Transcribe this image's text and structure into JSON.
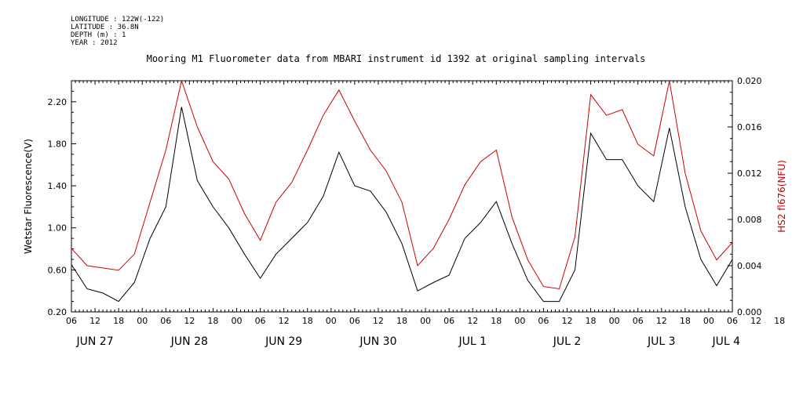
{
  "meta": {
    "longitude": "LONGITUDE : 122W(-122)",
    "latitude": "LATITUDE : 36.8N",
    "depth": "DEPTH (m) : 1",
    "year": "YEAR : 2012"
  },
  "chart_data": {
    "type": "line",
    "title": "Mooring M1 Fluorometer data from MBARI instrument id 1392 at original sampling intervals",
    "ylabel": "Wetstar Fluorescence(V)",
    "y2label": "HS2 fl676(NFU)",
    "ylim": [
      0.2,
      2.4
    ],
    "y2lim": [
      0.0,
      0.02
    ],
    "yticks": [
      "0.20",
      "0.60",
      "1.00",
      "1.40",
      "1.80",
      "2.20"
    ],
    "y2ticks": [
      "0.000",
      "0.004",
      "0.008",
      "0.012",
      "0.016",
      "0.020"
    ],
    "xlim": [
      "2012-06-27T06:00",
      "2012-07-04T06:00"
    ],
    "x_hour_ticks": [
      "06",
      "12",
      "18",
      "00",
      "06",
      "12",
      "18",
      "00",
      "06",
      "12",
      "18",
      "00",
      "06",
      "12",
      "18",
      "00",
      "06",
      "12",
      "18",
      "00",
      "06",
      "12",
      "18",
      "00",
      "06",
      "12",
      "18",
      "00",
      "06",
      "12",
      "18",
      "00",
      "06"
    ],
    "x_day_labels": [
      "JUN 27",
      "JUN 28",
      "JUN 29",
      "JUN 30",
      "JUL 1",
      "JUL 2",
      "JUL 3",
      "JUL 4"
    ],
    "series": [
      {
        "color": "#000000",
        "axis": "left",
        "x": [
          0,
          4,
          8,
          12,
          16,
          20,
          24,
          28,
          32,
          36,
          40,
          44,
          48,
          52,
          56,
          60,
          64,
          68,
          72,
          76,
          80,
          84,
          88,
          92,
          96,
          100,
          104,
          108,
          112,
          116,
          120,
          124,
          128,
          132,
          136,
          140,
          144,
          148,
          152,
          156,
          160,
          164,
          168
        ],
        "y": [
          0.65,
          0.42,
          0.38,
          0.3,
          0.48,
          0.9,
          1.2,
          2.15,
          1.45,
          1.2,
          1.0,
          0.75,
          0.52,
          0.75,
          0.9,
          1.05,
          1.3,
          1.72,
          1.4,
          1.35,
          1.15,
          0.85,
          0.4,
          0.48,
          0.55,
          0.9,
          1.05,
          1.25,
          0.85,
          0.5,
          0.3,
          0.3,
          0.6,
          1.9,
          1.65,
          1.65,
          1.4,
          1.25,
          1.95,
          1.2,
          0.7,
          0.45,
          0.7
        ]
      },
      {
        "color": "#cc0000",
        "axis": "right",
        "x": [
          0,
          4,
          8,
          12,
          16,
          20,
          24,
          28,
          32,
          36,
          40,
          44,
          48,
          52,
          56,
          60,
          64,
          68,
          72,
          76,
          80,
          84,
          88,
          92,
          96,
          100,
          104,
          108,
          112,
          116,
          120,
          124,
          128,
          132,
          136,
          140,
          144,
          148,
          152,
          156,
          160,
          164,
          168
        ],
        "y": [
          0.0055,
          0.004,
          0.0038,
          0.0036,
          0.005,
          0.0095,
          0.014,
          0.02,
          0.016,
          0.013,
          0.0115,
          0.0085,
          0.0062,
          0.0095,
          0.0112,
          0.014,
          0.017,
          0.0192,
          0.0165,
          0.014,
          0.0122,
          0.0095,
          0.004,
          0.0055,
          0.008,
          0.011,
          0.013,
          0.014,
          0.0082,
          0.0045,
          0.0022,
          0.002,
          0.0065,
          0.0188,
          0.017,
          0.0175,
          0.0145,
          0.0135,
          0.02,
          0.012,
          0.007,
          0.0045,
          0.006
        ]
      }
    ]
  }
}
